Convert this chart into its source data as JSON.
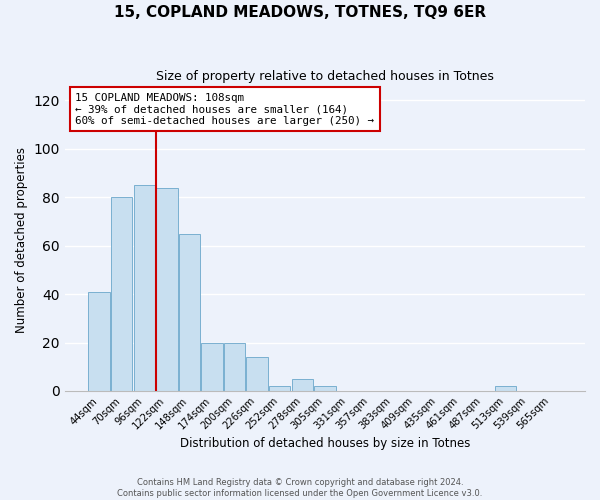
{
  "title": "15, COPLAND MEADOWS, TOTNES, TQ9 6ER",
  "subtitle": "Size of property relative to detached houses in Totnes",
  "xlabel": "Distribution of detached houses by size in Totnes",
  "ylabel": "Number of detached properties",
  "bar_labels": [
    "44sqm",
    "70sqm",
    "96sqm",
    "122sqm",
    "148sqm",
    "174sqm",
    "200sqm",
    "226sqm",
    "252sqm",
    "278sqm",
    "305sqm",
    "331sqm",
    "357sqm",
    "383sqm",
    "409sqm",
    "435sqm",
    "461sqm",
    "487sqm",
    "513sqm",
    "539sqm",
    "565sqm"
  ],
  "bar_heights": [
    41,
    80,
    85,
    84,
    65,
    20,
    20,
    14,
    2,
    5,
    2,
    0,
    0,
    0,
    0,
    0,
    0,
    0,
    2,
    0,
    0
  ],
  "bar_color": "#c8dff0",
  "bar_edge_color": "#7ab0d0",
  "vline_x": 2.5,
  "vline_color": "#cc0000",
  "annotation_text": "15 COPLAND MEADOWS: 108sqm\n← 39% of detached houses are smaller (164)\n60% of semi-detached houses are larger (250) →",
  "annotation_box_color": "#ffffff",
  "annotation_box_edge": "#cc0000",
  "ylim": [
    0,
    125
  ],
  "yticks": [
    0,
    20,
    40,
    60,
    80,
    100,
    120
  ],
  "footer": "Contains HM Land Registry data © Crown copyright and database right 2024.\nContains public sector information licensed under the Open Government Licence v3.0.",
  "bg_color": "#edf2fb",
  "grid_color": "#ffffff",
  "title_fontsize": 11,
  "subtitle_fontsize": 9
}
